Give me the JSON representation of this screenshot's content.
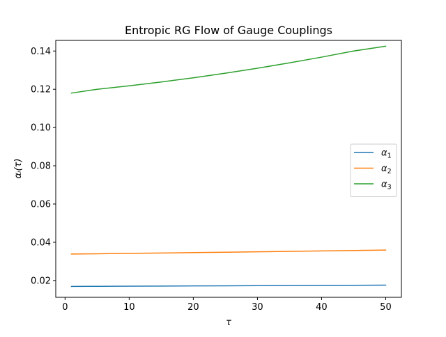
{
  "chart_data": {
    "type": "line",
    "title": "Entropic RG Flow of Gauge Couplings",
    "xlabel": "τ",
    "ylabel": "αᵢ(τ)",
    "xlim": [
      -1.45,
      52.45
    ],
    "ylim": [
      0.01122,
      0.14556
    ],
    "x_ticks": [
      0,
      10,
      20,
      30,
      40,
      50
    ],
    "x_tick_labels": [
      "0",
      "10",
      "20",
      "30",
      "40",
      "50"
    ],
    "y_ticks": [
      0.02,
      0.04,
      0.06,
      0.08,
      0.1,
      0.12,
      0.14
    ],
    "y_tick_labels": [
      "0.02",
      "0.04",
      "0.06",
      "0.08",
      "0.10",
      "0.12",
      "0.14"
    ],
    "grid": false,
    "legend": {
      "placement": "center-right",
      "entries": [
        "α1",
        "α2",
        "α3"
      ]
    },
    "x": [
      1,
      5,
      10,
      15,
      20,
      25,
      30,
      35,
      40,
      45,
      50
    ],
    "series": [
      {
        "name": "α1",
        "color": "#1f77b4",
        "values": [
          0.01692,
          0.01697,
          0.01703,
          0.01711,
          0.01718,
          0.01724,
          0.01731,
          0.01738,
          0.01745,
          0.01752,
          0.0176
        ]
      },
      {
        "name": "α2",
        "color": "#ff7f0e",
        "values": [
          0.03386,
          0.03398,
          0.03418,
          0.03438,
          0.03459,
          0.0348,
          0.03502,
          0.03524,
          0.03547,
          0.0357,
          0.03594
        ]
      },
      {
        "name": "α3",
        "color": "#2ca02c",
        "values": [
          0.118,
          0.12,
          0.1218,
          0.1238,
          0.126,
          0.1284,
          0.131,
          0.1338,
          0.1368,
          0.14,
          0.1425
        ]
      }
    ]
  }
}
